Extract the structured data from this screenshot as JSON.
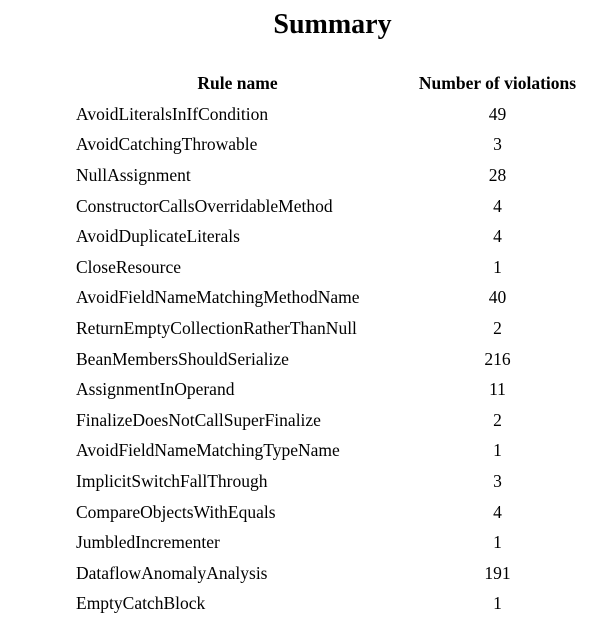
{
  "header": {
    "title": "Summary"
  },
  "table": {
    "columns": [
      "Rule name",
      "Number of violations"
    ],
    "rows": [
      [
        "AvoidLiteralsInIfCondition",
        49
      ],
      [
        "AvoidCatchingThrowable",
        3
      ],
      [
        "NullAssignment",
        28
      ],
      [
        "ConstructorCallsOverridableMethod",
        4
      ],
      [
        "AvoidDuplicateLiterals",
        4
      ],
      [
        "CloseResource",
        1
      ],
      [
        "AvoidFieldNameMatchingMethodName",
        40
      ],
      [
        "ReturnEmptyCollectionRatherThanNull",
        2
      ],
      [
        "BeanMembersShouldSerialize",
        216
      ],
      [
        "AssignmentInOperand",
        11
      ],
      [
        "FinalizeDoesNotCallSuperFinalize",
        2
      ],
      [
        "AvoidFieldNameMatchingTypeName",
        1
      ],
      [
        "ImplicitSwitchFallThrough",
        3
      ],
      [
        "CompareObjectsWithEquals",
        4
      ],
      [
        "JumbledIncrementer",
        1
      ],
      [
        "DataflowAnomalyAnalysis",
        191
      ],
      [
        "EmptyCatchBlock",
        1
      ]
    ]
  }
}
